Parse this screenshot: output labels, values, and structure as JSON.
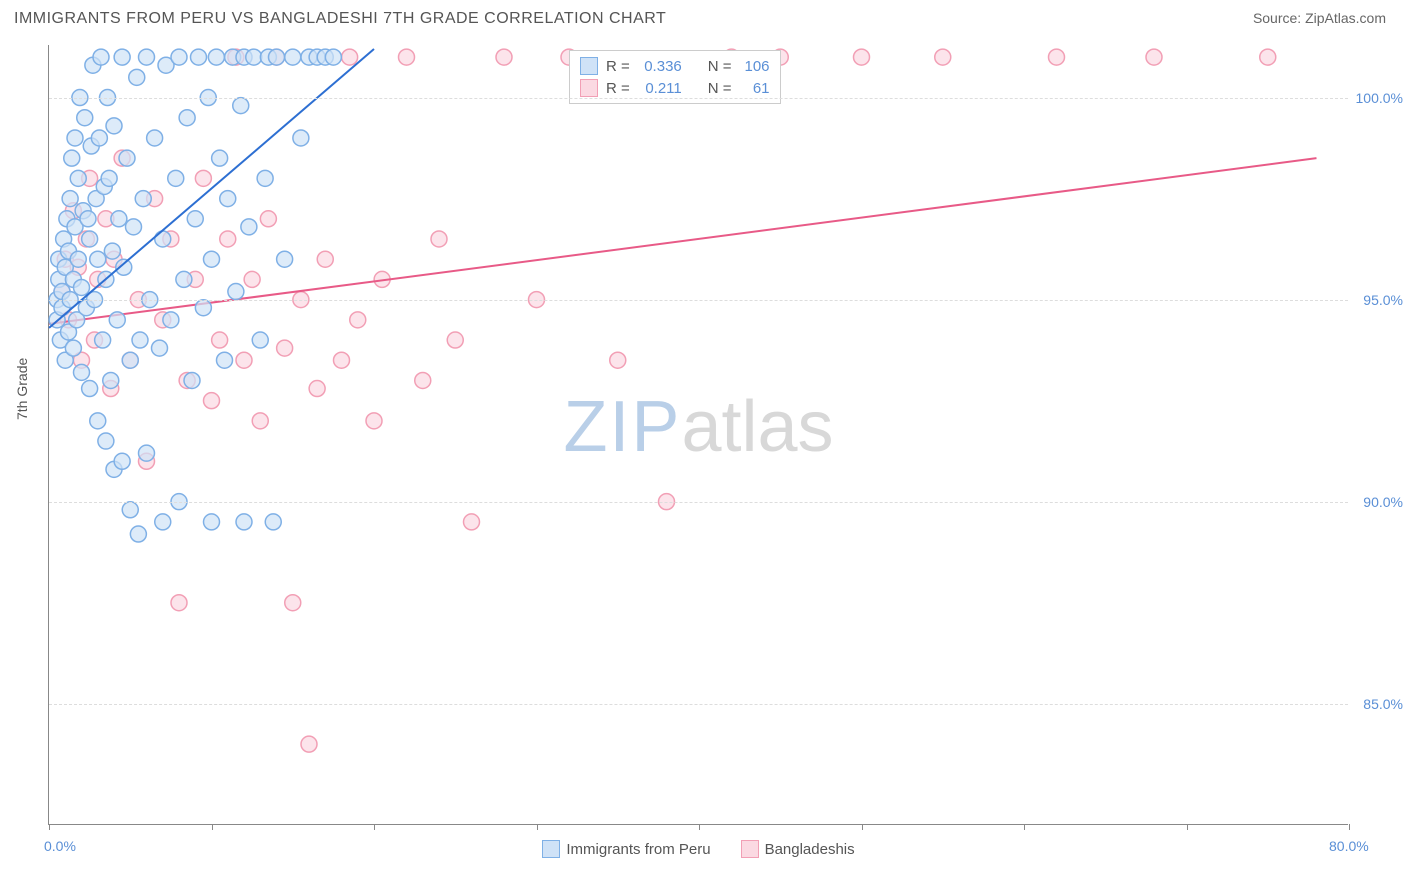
{
  "title": "IMMIGRANTS FROM PERU VS BANGLADESHI 7TH GRADE CORRELATION CHART",
  "source_label": "Source: ",
  "source_name": "ZipAtlas.com",
  "y_axis_label": "7th Grade",
  "watermark_a": "ZIP",
  "watermark_b": "atlas",
  "chart": {
    "type": "scatter",
    "xlim": [
      0,
      80
    ],
    "ylim": [
      82,
      101.3
    ],
    "x_ticks": [
      0,
      10,
      20,
      30,
      40,
      50,
      60,
      70,
      80
    ],
    "x_tick_labels": {
      "0": "0.0%",
      "80": "80.0%"
    },
    "y_ticks": [
      85,
      90,
      95,
      100
    ],
    "y_tick_labels": {
      "85": "85.0%",
      "90": "90.0%",
      "95": "95.0%",
      "100": "100.0%"
    },
    "grid_color": "#dddddd",
    "axis_color": "#888888",
    "background_color": "#ffffff",
    "marker_radius": 8,
    "marker_stroke_width": 1.5,
    "line_width": 2
  },
  "series": {
    "peru": {
      "label": "Immigrants from Peru",
      "fill": "#cfe2f7",
      "stroke": "#7fb0e6",
      "line_color": "#2d6fd2",
      "r_label": "R = ",
      "r_value": "0.336",
      "n_label": "N = ",
      "n_value": "106",
      "trend": {
        "x1": 0,
        "y1": 94.3,
        "x2": 20,
        "y2": 101.2
      },
      "points": [
        [
          0.5,
          94.5
        ],
        [
          0.5,
          95.0
        ],
        [
          0.6,
          95.5
        ],
        [
          0.6,
          96.0
        ],
        [
          0.7,
          94.0
        ],
        [
          0.8,
          94.8
        ],
        [
          0.8,
          95.2
        ],
        [
          0.9,
          96.5
        ],
        [
          1.0,
          93.5
        ],
        [
          1.0,
          95.8
        ],
        [
          1.1,
          97.0
        ],
        [
          1.2,
          94.2
        ],
        [
          1.2,
          96.2
        ],
        [
          1.3,
          95.0
        ],
        [
          1.3,
          97.5
        ],
        [
          1.4,
          98.5
        ],
        [
          1.5,
          93.8
        ],
        [
          1.5,
          95.5
        ],
        [
          1.6,
          96.8
        ],
        [
          1.6,
          99.0
        ],
        [
          1.7,
          94.5
        ],
        [
          1.8,
          96.0
        ],
        [
          1.8,
          98.0
        ],
        [
          1.9,
          100.0
        ],
        [
          2.0,
          93.2
        ],
        [
          2.0,
          95.3
        ],
        [
          2.1,
          97.2
        ],
        [
          2.2,
          99.5
        ],
        [
          2.3,
          94.8
        ],
        [
          2.4,
          97.0
        ],
        [
          2.5,
          92.8
        ],
        [
          2.5,
          96.5
        ],
        [
          2.6,
          98.8
        ],
        [
          2.7,
          100.8
        ],
        [
          2.8,
          95.0
        ],
        [
          2.9,
          97.5
        ],
        [
          3.0,
          92.0
        ],
        [
          3.0,
          96.0
        ],
        [
          3.1,
          99.0
        ],
        [
          3.2,
          101.0
        ],
        [
          3.3,
          94.0
        ],
        [
          3.4,
          97.8
        ],
        [
          3.5,
          91.5
        ],
        [
          3.5,
          95.5
        ],
        [
          3.6,
          100.0
        ],
        [
          3.7,
          98.0
        ],
        [
          3.8,
          93.0
        ],
        [
          3.9,
          96.2
        ],
        [
          4.0,
          90.8
        ],
        [
          4.0,
          99.3
        ],
        [
          4.2,
          94.5
        ],
        [
          4.3,
          97.0
        ],
        [
          4.5,
          91.0
        ],
        [
          4.5,
          101.0
        ],
        [
          4.6,
          95.8
        ],
        [
          4.8,
          98.5
        ],
        [
          5.0,
          89.8
        ],
        [
          5.0,
          93.5
        ],
        [
          5.2,
          96.8
        ],
        [
          5.4,
          100.5
        ],
        [
          5.5,
          89.2
        ],
        [
          5.6,
          94.0
        ],
        [
          5.8,
          97.5
        ],
        [
          6.0,
          91.2
        ],
        [
          6.0,
          101.0
        ],
        [
          6.2,
          95.0
        ],
        [
          6.5,
          99.0
        ],
        [
          6.8,
          93.8
        ],
        [
          7.0,
          89.5
        ],
        [
          7.0,
          96.5
        ],
        [
          7.2,
          100.8
        ],
        [
          7.5,
          94.5
        ],
        [
          7.8,
          98.0
        ],
        [
          8.0,
          90.0
        ],
        [
          8.0,
          101.0
        ],
        [
          8.3,
          95.5
        ],
        [
          8.5,
          99.5
        ],
        [
          8.8,
          93.0
        ],
        [
          9.0,
          97.0
        ],
        [
          9.2,
          101.0
        ],
        [
          9.5,
          94.8
        ],
        [
          9.8,
          100.0
        ],
        [
          10.0,
          89.5
        ],
        [
          10.0,
          96.0
        ],
        [
          10.3,
          101.0
        ],
        [
          10.5,
          98.5
        ],
        [
          10.8,
          93.5
        ],
        [
          11.0,
          97.5
        ],
        [
          11.3,
          101.0
        ],
        [
          11.5,
          95.2
        ],
        [
          11.8,
          99.8
        ],
        [
          12.0,
          89.5
        ],
        [
          12.0,
          101.0
        ],
        [
          12.3,
          96.8
        ],
        [
          12.6,
          101.0
        ],
        [
          13.0,
          94.0
        ],
        [
          13.3,
          98.0
        ],
        [
          13.5,
          101.0
        ],
        [
          13.8,
          89.5
        ],
        [
          14.0,
          101.0
        ],
        [
          14.5,
          96.0
        ],
        [
          15.0,
          101.0
        ],
        [
          15.5,
          99.0
        ],
        [
          16.0,
          101.0
        ],
        [
          16.5,
          101.0
        ],
        [
          17.0,
          101.0
        ],
        [
          17.5,
          101.0
        ]
      ]
    },
    "bangladeshi": {
      "label": "Bangladeshis",
      "fill": "#fbd9e2",
      "stroke": "#f29fb5",
      "line_color": "#e85a87",
      "r_label": "R = ",
      "r_value": "0.211",
      "n_label": "N = ",
      "n_value": "61",
      "trend": {
        "x1": 0,
        "y1": 94.4,
        "x2": 78,
        "y2": 98.5
      },
      "points": [
        [
          0.8,
          95.2
        ],
        [
          1.0,
          96.0
        ],
        [
          1.2,
          94.5
        ],
        [
          1.5,
          97.2
        ],
        [
          1.8,
          95.8
        ],
        [
          2.0,
          93.5
        ],
        [
          2.3,
          96.5
        ],
        [
          2.5,
          98.0
        ],
        [
          2.8,
          94.0
        ],
        [
          3.0,
          95.5
        ],
        [
          3.5,
          97.0
        ],
        [
          3.8,
          92.8
        ],
        [
          4.0,
          96.0
        ],
        [
          4.5,
          98.5
        ],
        [
          5.0,
          93.5
        ],
        [
          5.5,
          95.0
        ],
        [
          6.0,
          91.0
        ],
        [
          6.5,
          97.5
        ],
        [
          7.0,
          94.5
        ],
        [
          7.5,
          96.5
        ],
        [
          8.0,
          87.5
        ],
        [
          8.5,
          93.0
        ],
        [
          9.0,
          95.5
        ],
        [
          9.5,
          98.0
        ],
        [
          10.0,
          92.5
        ],
        [
          10.5,
          94.0
        ],
        [
          11.0,
          96.5
        ],
        [
          11.5,
          101.0
        ],
        [
          12.0,
          93.5
        ],
        [
          12.5,
          95.5
        ],
        [
          13.0,
          92.0
        ],
        [
          13.5,
          97.0
        ],
        [
          14.0,
          101.0
        ],
        [
          14.5,
          93.8
        ],
        [
          15.0,
          87.5
        ],
        [
          15.5,
          95.0
        ],
        [
          16.0,
          84.0
        ],
        [
          16.5,
          92.8
        ],
        [
          17.0,
          96.0
        ],
        [
          18.0,
          93.5
        ],
        [
          18.5,
          101.0
        ],
        [
          19.0,
          94.5
        ],
        [
          20.0,
          92.0
        ],
        [
          20.5,
          95.5
        ],
        [
          22.0,
          101.0
        ],
        [
          23.0,
          93.0
        ],
        [
          24.0,
          96.5
        ],
        [
          25.0,
          94.0
        ],
        [
          26.0,
          89.5
        ],
        [
          28.0,
          101.0
        ],
        [
          30.0,
          95.0
        ],
        [
          32.0,
          101.0
        ],
        [
          35.0,
          93.5
        ],
        [
          38.0,
          90.0
        ],
        [
          42.0,
          101.0
        ],
        [
          45.0,
          101.0
        ],
        [
          50.0,
          101.0
        ],
        [
          55.0,
          101.0
        ],
        [
          62.0,
          101.0
        ],
        [
          68.0,
          101.0
        ],
        [
          75.0,
          101.0
        ]
      ]
    }
  }
}
